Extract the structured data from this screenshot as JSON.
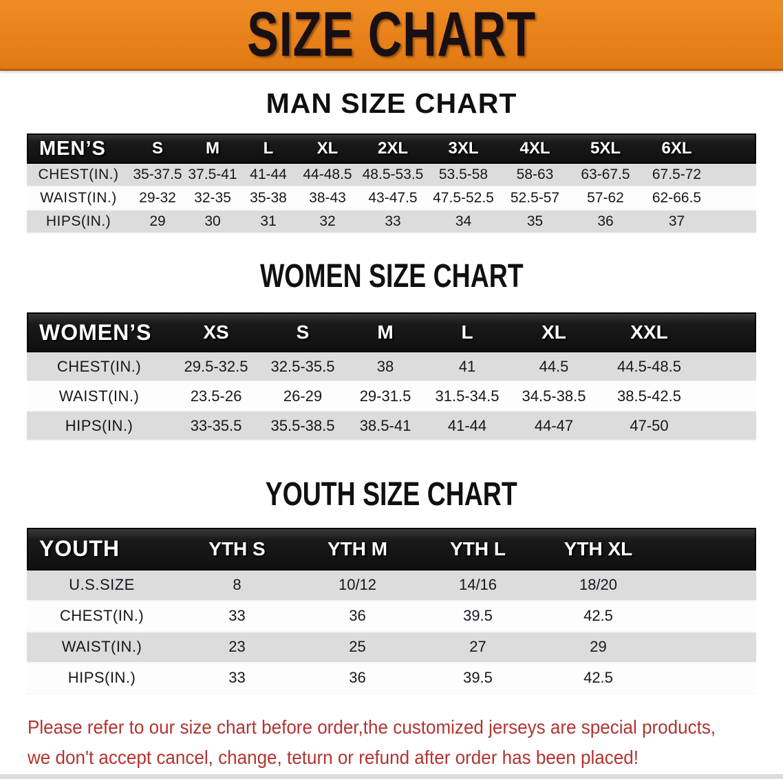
{
  "banner": {
    "title": "SIZE CHART",
    "bg_color": "#e8811b"
  },
  "chart_data": [
    {
      "type": "table",
      "title": "MAN SIZE CHART",
      "header_label": "MEN’S",
      "columns": [
        "S",
        "M",
        "L",
        "XL",
        "2XL",
        "3XL",
        "4XL",
        "5XL",
        "6XL"
      ],
      "rows": [
        {
          "label": "CHEST(IN.)",
          "values": [
            "35-37.5",
            "37.5-41",
            "41-44",
            "44-48.5",
            "48.5-53.5",
            "53.5-58",
            "58-63",
            "63-67.5",
            "67.5-72"
          ]
        },
        {
          "label": "WAIST(IN.)",
          "values": [
            "29-32",
            "32-35",
            "35-38",
            "38-43",
            "43-47.5",
            "47.5-52.5",
            "52.5-57",
            "57-62",
            "62-66.5"
          ]
        },
        {
          "label": "HIPS(IN.)",
          "values": [
            "29",
            "30",
            "31",
            "32",
            "33",
            "34",
            "35",
            "36",
            "37"
          ]
        }
      ]
    },
    {
      "type": "table",
      "title": "WOMEN SIZE CHART",
      "header_label": "WOMEN’S",
      "columns": [
        "XS",
        "S",
        "M",
        "L",
        "XL",
        "XXL"
      ],
      "rows": [
        {
          "label": "CHEST(IN.)",
          "values": [
            "29.5-32.5",
            "32.5-35.5",
            "38",
            "41",
            "44.5",
            "44.5-48.5"
          ]
        },
        {
          "label": "WAIST(IN.)",
          "values": [
            "23.5-26",
            "26-29",
            "29-31.5",
            "31.5-34.5",
            "34.5-38.5",
            "38.5-42.5"
          ]
        },
        {
          "label": "HIPS(IN.)",
          "values": [
            "33-35.5",
            "35.5-38.5",
            "38.5-41",
            "41-44",
            "44-47",
            "47-50"
          ]
        }
      ]
    },
    {
      "type": "table",
      "title": "YOUTH SIZE CHART",
      "header_label": "YOUTH",
      "columns": [
        "YTH S",
        "YTH M",
        "YTH L",
        "YTH XL"
      ],
      "rows": [
        {
          "label": "U.S.SIZE",
          "values": [
            "8",
            "10/12",
            "14/16",
            "18/20"
          ]
        },
        {
          "label": "CHEST(IN.)",
          "values": [
            "33",
            "36",
            "39.5",
            "42.5"
          ]
        },
        {
          "label": "WAIST(IN.)",
          "values": [
            "23",
            "25",
            "27",
            "29"
          ]
        },
        {
          "label": "HIPS(IN.)",
          "values": [
            "33",
            "36",
            "39.5",
            "42.5"
          ]
        }
      ]
    }
  ],
  "footer_note": {
    "line1": "Please refer to our size chart before order,the customized jerseys are special products,",
    "line2": "we don't accept cancel, change, teturn or refund after order has been placed!",
    "color": "#b23430"
  }
}
